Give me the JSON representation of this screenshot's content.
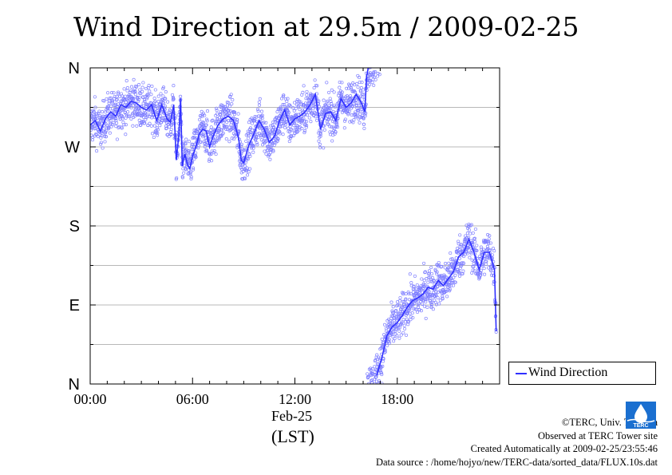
{
  "title": "Wind Direction at 29.5m / 2009-02-25",
  "chart_data": {
    "type": "scatter",
    "title": "Wind Direction at 29.5m / 2009-02-25",
    "xlabel": "Feb-25",
    "xunit": "(LST)",
    "x_unit": "hours",
    "xlim": [
      0,
      24
    ],
    "xticks": [
      {
        "value": 0,
        "label": "00:00"
      },
      {
        "value": 6,
        "label": "06:00"
      },
      {
        "value": 12,
        "label": "12:00"
      },
      {
        "value": 18,
        "label": "18:00"
      }
    ],
    "ylim": [
      0,
      360
    ],
    "yticks": [
      {
        "value": 0,
        "label": "N"
      },
      {
        "value": 90,
        "label": "E"
      },
      {
        "value": 180,
        "label": "S"
      },
      {
        "value": 270,
        "label": "W"
      },
      {
        "value": 360,
        "label": "N"
      }
    ],
    "grid": true,
    "legend": {
      "position": "bottom-right outside",
      "entries": [
        "Wind Direction"
      ]
    },
    "series": [
      {
        "name": "Wind Direction",
        "color": "#3030ff",
        "scatter_color": "#8080ff",
        "x": [
          0.0,
          0.3,
          0.6,
          0.9,
          1.2,
          1.5,
          1.8,
          2.1,
          2.4,
          2.7,
          3.0,
          3.3,
          3.6,
          3.9,
          4.2,
          4.5,
          4.7,
          4.9,
          5.05,
          5.2,
          5.3,
          5.4,
          5.55,
          5.7,
          5.85,
          6.0,
          6.2,
          6.4,
          6.6,
          6.8,
          7.0,
          7.2,
          7.5,
          7.8,
          8.1,
          8.4,
          8.7,
          8.85,
          9.0,
          9.3,
          9.6,
          9.9,
          10.2,
          10.5,
          10.8,
          11.1,
          11.4,
          11.7,
          12.0,
          12.3,
          12.6,
          12.9,
          13.2,
          13.5,
          13.8,
          14.1,
          14.4,
          14.7,
          15.0,
          15.3,
          15.6,
          15.9,
          16.1,
          16.2,
          16.3,
          16.4,
          16.5,
          16.8,
          17.1,
          17.4,
          17.7,
          18.0,
          18.3,
          18.6,
          18.9,
          19.2,
          19.5,
          19.8,
          20.1,
          20.4,
          20.7,
          21.0,
          21.3,
          21.6,
          21.9,
          22.2,
          22.5,
          22.8,
          23.1,
          23.4,
          23.7,
          23.8
        ],
        "y": [
          295,
          300,
          288,
          302,
          310,
          305,
          318,
          315,
          322,
          320,
          315,
          312,
          318,
          300,
          318,
          302,
          298,
          318,
          255,
          285,
          325,
          248,
          262,
          250,
          245,
          260,
          270,
          285,
          290,
          288,
          270,
          282,
          295,
          302,
          305,
          300,
          280,
          255,
          252,
          272,
          285,
          300,
          290,
          275,
          282,
          300,
          312,
          295,
          302,
          305,
          310,
          318,
          330,
          290,
          308,
          310,
          300,
          325,
          315,
          320,
          330,
          320,
          310,
          350,
          360,
          360,
          360,
          10,
          30,
          55,
          65,
          70,
          78,
          88,
          95,
          98,
          102,
          110,
          108,
          118,
          112,
          120,
          128,
          145,
          150,
          165,
          150,
          130,
          150,
          150,
          130,
          60
        ],
        "scatter_spread_deg": 22
      }
    ]
  },
  "legend": {
    "label": "Wind Direction"
  },
  "credits": {
    "copyright": "©TERC, Univ. Tsukuba",
    "site": "Observed at TERC Tower site",
    "created": "Created Automatically at 2009-02-25/23:55:46",
    "source": "Data source : /home/hojyo/new/TERC-data/sorted_data/FLUX.10s.dat"
  },
  "logo": {
    "text": "TERC"
  }
}
